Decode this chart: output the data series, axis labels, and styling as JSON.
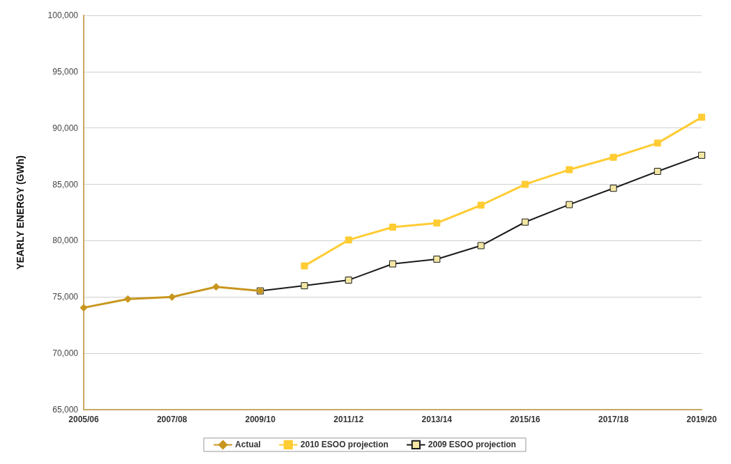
{
  "chart_data": {
    "type": "line",
    "ylabel": "YEARLY ENERGY (GWh)",
    "categories": [
      "2005/06",
      null,
      "2007/08",
      null,
      "2009/10",
      null,
      "2011/12",
      null,
      "2013/14",
      null,
      "2015/16",
      null,
      "2017/18",
      null,
      "2019/20"
    ],
    "series": [
      {
        "name": "Actual",
        "color": "#c8961e",
        "marker": "diamond",
        "values": [
          74050,
          74820,
          75000,
          75900,
          75540,
          null,
          null,
          null,
          null,
          null,
          null,
          null,
          null,
          null,
          null
        ]
      },
      {
        "name": "2010 ESOO projection",
        "color": "#ffcc33",
        "marker": "square",
        "values": [
          null,
          null,
          null,
          null,
          null,
          77760,
          80060,
          81200,
          81560,
          83150,
          85000,
          86300,
          87400,
          88660,
          90950
        ]
      },
      {
        "name": "2009 ESOO projection",
        "color": "#1a1a1a",
        "marker": "square",
        "values": [
          null,
          null,
          null,
          null,
          75540,
          76000,
          76500,
          77940,
          78360,
          79560,
          81650,
          83200,
          84650,
          86150,
          87580
        ]
      }
    ],
    "ylim": [
      65000,
      100000
    ],
    "yticks": [
      {
        "value": 65000,
        "label": "65,000"
      },
      {
        "value": 70000,
        "label": "70,000"
      },
      {
        "value": 75000,
        "label": "75,000"
      },
      {
        "value": 80000,
        "label": "80,000"
      },
      {
        "value": 85000,
        "label": "85,000"
      },
      {
        "value": 90000,
        "label": "90,000"
      },
      {
        "value": 95000,
        "label": "95,000"
      },
      {
        "value": 100000,
        "label": "100,000"
      }
    ],
    "grid": "y",
    "legend": "bottom",
    "line_style": "solid"
  }
}
